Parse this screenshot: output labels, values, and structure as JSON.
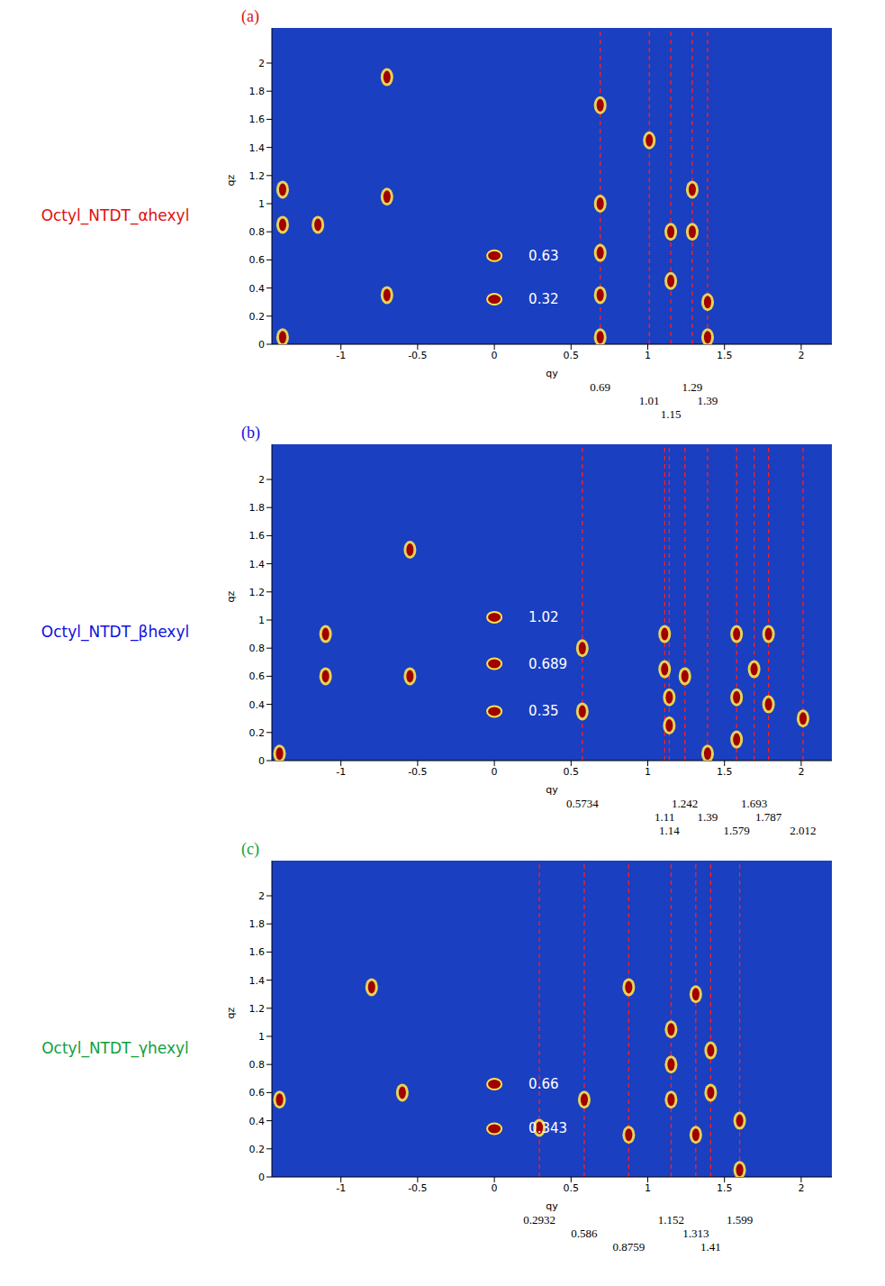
{
  "chart_data": [
    {
      "type": "scatter",
      "title": "(a)",
      "molecule": "Octyl_NTDT_αhexyl",
      "color": "#e01010",
      "x_label": "qy",
      "y_label": "qz",
      "xlim": [
        -1.45,
        2.2
      ],
      "ylim": [
        0,
        2.25
      ],
      "xticks": [
        -1,
        -0.5,
        0,
        0.5,
        1,
        1.5,
        2
      ],
      "yticks": [
        0,
        0.2,
        0.4,
        0.6,
        0.8,
        1,
        1.2,
        1.4,
        1.6,
        1.8,
        2
      ],
      "line_style": "dashed",
      "reflection_lines": [
        0.69,
        1.01,
        1.15,
        1.29,
        1.39
      ],
      "meridional_peaks": [
        0.63,
        0.32
      ],
      "spots": {
        "x": [
          0.69,
          0.69,
          0.69,
          0.69,
          0.69,
          1.15,
          1.15,
          1.29,
          1.29,
          1.39,
          1.39,
          1.01,
          -1.38,
          -1.38,
          -1.15,
          -1.38,
          -0.7,
          -0.7,
          -0.7
        ],
        "y": [
          0.05,
          0.35,
          0.65,
          1.0,
          1.7,
          0.8,
          0.45,
          1.1,
          0.8,
          0.3,
          0.05,
          1.45,
          1.1,
          0.85,
          0.85,
          0.05,
          1.9,
          0.35,
          1.05
        ]
      }
    },
    {
      "type": "scatter",
      "title": "(b)",
      "molecule": "Octyl_NTDT_βhexyl",
      "color": "#1010e0",
      "x_label": "qy",
      "y_label": "qz",
      "xlim": [
        -1.45,
        2.2
      ],
      "ylim": [
        0,
        2.25
      ],
      "xticks": [
        -1,
        -0.5,
        0,
        0.5,
        1,
        1.5,
        2
      ],
      "yticks": [
        0,
        0.2,
        0.4,
        0.6,
        0.8,
        1,
        1.2,
        1.4,
        1.6,
        1.8,
        2
      ],
      "line_style": "dashed",
      "reflection_lines": [
        0.5734,
        1.11,
        1.14,
        1.242,
        1.39,
        1.579,
        1.693,
        1.787,
        2.012
      ],
      "meridional_peaks": [
        1.02,
        0.689,
        0.35
      ],
      "spots": {
        "x": [
          1.11,
          1.11,
          1.14,
          1.14,
          1.242,
          1.39,
          1.579,
          1.579,
          1.579,
          1.693,
          1.787,
          1.787,
          0.5734,
          0.5734,
          -1.1,
          -1.1,
          -1.4,
          -0.55,
          -0.55,
          2.012
        ],
        "y": [
          0.9,
          0.65,
          0.45,
          0.25,
          0.6,
          0.05,
          0.15,
          0.45,
          0.9,
          0.65,
          0.4,
          0.9,
          0.35,
          0.8,
          0.9,
          0.6,
          0.05,
          0.6,
          1.5,
          0.3
        ]
      }
    },
    {
      "type": "scatter",
      "title": "(c)",
      "molecule": "Octyl_NTDT_γhexyl",
      "color": "#10a040",
      "x_label": "qy",
      "y_label": "qz",
      "xlim": [
        -1.45,
        2.2
      ],
      "ylim": [
        0,
        2.25
      ],
      "xticks": [
        -1,
        -0.5,
        0,
        0.5,
        1,
        1.5,
        2
      ],
      "yticks": [
        0,
        0.2,
        0.4,
        0.6,
        0.8,
        1,
        1.2,
        1.4,
        1.6,
        1.8,
        2
      ],
      "line_style": "dashed",
      "reflection_lines": [
        0.2932,
        0.586,
        0.8759,
        1.152,
        1.313,
        1.41,
        1.599
      ],
      "meridional_peaks": [
        0.66,
        0.343
      ],
      "spots": {
        "x": [
          1.152,
          1.152,
          1.152,
          1.313,
          1.41,
          1.41,
          1.599,
          1.599,
          0.8759,
          0.586,
          0.2932,
          -0.8,
          -1.4,
          -0.6,
          1.313,
          0.8759
        ],
        "y": [
          0.55,
          0.8,
          1.05,
          1.3,
          0.6,
          0.9,
          0.05,
          0.4,
          1.35,
          0.55,
          0.35,
          1.35,
          0.55,
          0.6,
          0.3,
          0.3
        ]
      }
    }
  ]
}
